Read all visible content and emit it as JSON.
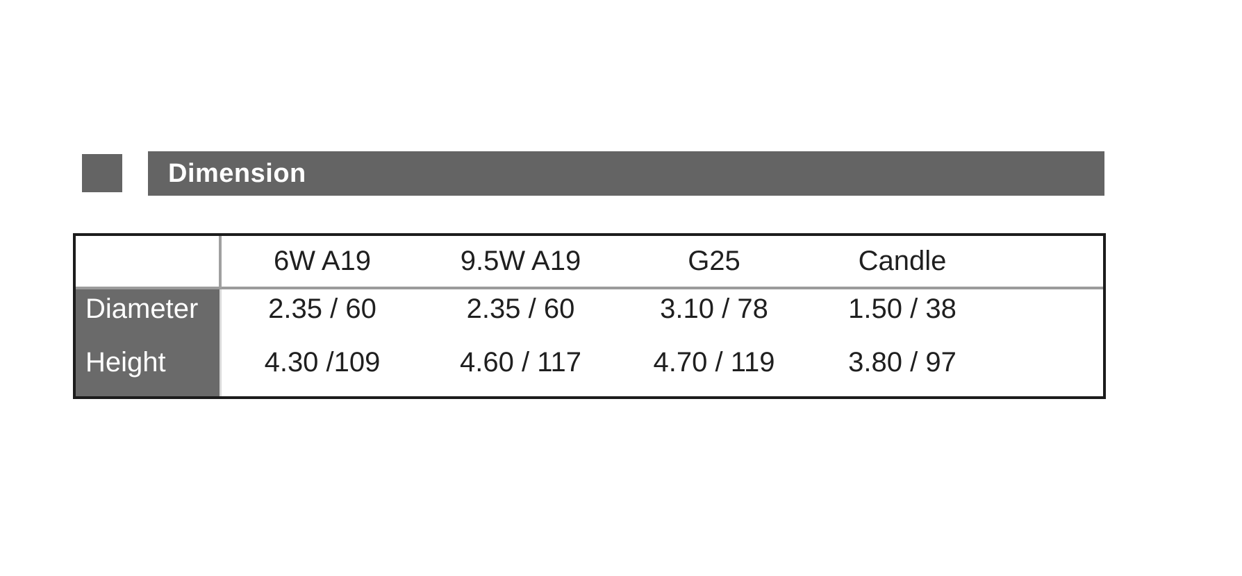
{
  "page": {
    "background_color": "#ffffff"
  },
  "section_header": {
    "title": "Dimension",
    "title_color": "#ffffff",
    "marker_color": "#646464",
    "bar_color": "#646464"
  },
  "table": {
    "outer_border_color": "#1c1c1c",
    "header_divider_color": "#9b9b9b",
    "label_cell_background": "#6a6a6a",
    "label_text_color": "#ffffff",
    "data_text_color": "#1f1f1f",
    "columns": [
      "6W A19",
      "9.5W A19",
      "G25",
      "Candle"
    ],
    "rows": [
      {
        "label": "Diameter",
        "values": [
          "2.35 / 60",
          "2.35 / 60",
          "3.10 / 78",
          "1.50 / 38"
        ]
      },
      {
        "label": "Height",
        "values": [
          "4.30 /109",
          "4.60 / 117",
          "4.70 / 119",
          "3.80 / 97"
        ]
      }
    ]
  }
}
